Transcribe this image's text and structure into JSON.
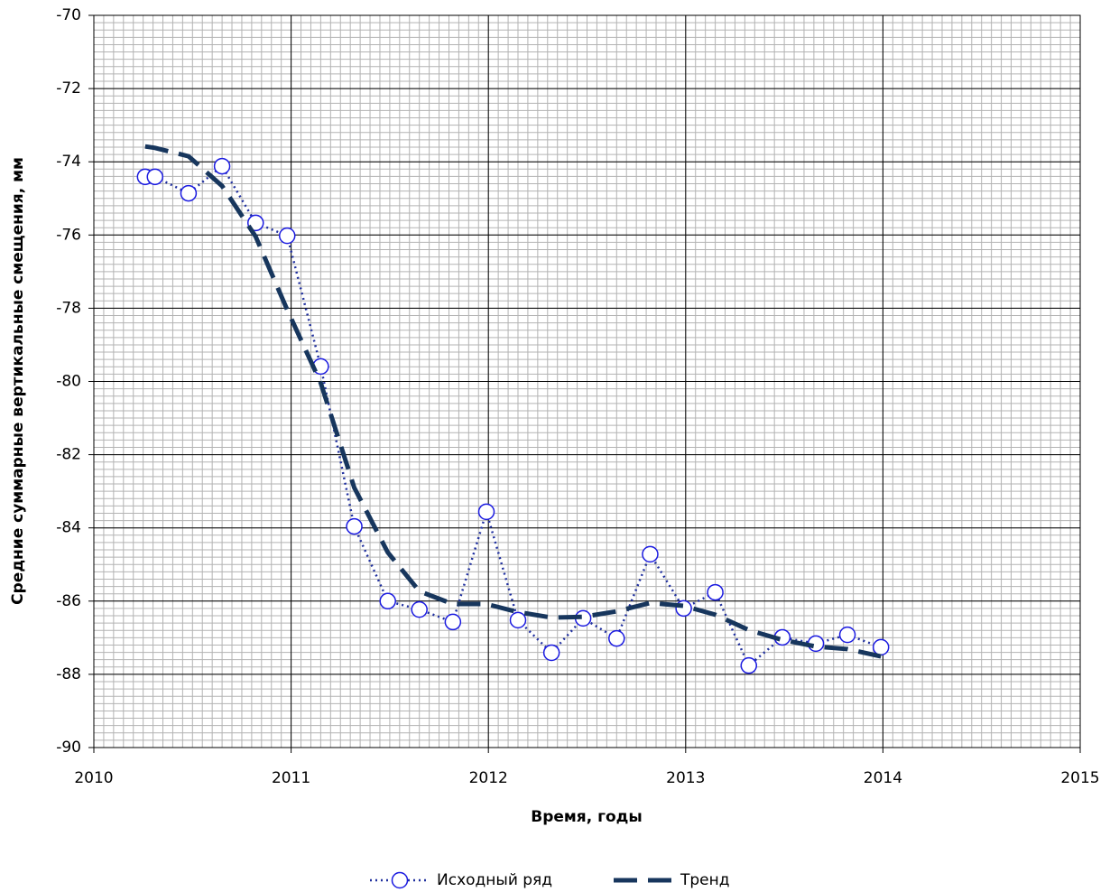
{
  "chart_data": {
    "type": "line",
    "xlabel": "Время, годы",
    "ylabel": "Средние суммарные вертикальные смещения, мм",
    "xlim": [
      2010,
      2015
    ],
    "xticks": [
      2010,
      2011,
      2012,
      2013,
      2014,
      2015
    ],
    "ylim": [
      -90,
      -70
    ],
    "yticks": [
      -90,
      -88,
      -86,
      -84,
      -82,
      -80,
      -78,
      -76,
      -74,
      -72,
      -70
    ],
    "grid": true,
    "minor_grid": {
      "x": 0.05,
      "y": 0.2
    },
    "legend": "bottom",
    "series": [
      {
        "name": "Исходный ряд",
        "color": "#1f2f9e",
        "style": "dotted",
        "marker": "circle",
        "x": [
          2010.26,
          2010.31,
          2010.48,
          2010.65,
          2010.82,
          2010.98,
          2011.15,
          2011.32,
          2011.49,
          2011.65,
          2011.82,
          2011.99,
          2012.15,
          2012.32,
          2012.48,
          2012.65,
          2012.82,
          2012.99,
          2013.15,
          2013.32,
          2013.49,
          2013.66,
          2013.82,
          2013.99
        ],
        "values": [
          -74.41,
          -74.41,
          -74.86,
          -74.12,
          -75.67,
          -76.02,
          -79.59,
          -83.96,
          -86.0,
          -86.23,
          -86.57,
          -83.56,
          -86.52,
          -87.41,
          -86.47,
          -87.02,
          -84.72,
          -86.2,
          -85.76,
          -87.76,
          -86.99,
          -87.16,
          -86.92,
          -87.26
        ]
      },
      {
        "name": "Тренд",
        "color": "#17365d",
        "style": "dashed",
        "x": [
          2010.26,
          2010.31,
          2010.48,
          2010.65,
          2010.82,
          2010.98,
          2011.15,
          2011.32,
          2011.49,
          2011.65,
          2011.82,
          2011.99,
          2012.15,
          2012.32,
          2012.48,
          2012.65,
          2012.82,
          2012.99,
          2013.15,
          2013.32,
          2013.49,
          2013.66,
          2013.82,
          2013.99
        ],
        "values": [
          -73.58,
          -73.62,
          -73.85,
          -74.66,
          -76.04,
          -78.04,
          -80.04,
          -82.9,
          -84.67,
          -85.73,
          -86.08,
          -86.08,
          -86.3,
          -86.45,
          -86.43,
          -86.28,
          -86.05,
          -86.13,
          -86.37,
          -86.79,
          -87.06,
          -87.24,
          -87.31,
          -87.51
        ]
      }
    ]
  }
}
